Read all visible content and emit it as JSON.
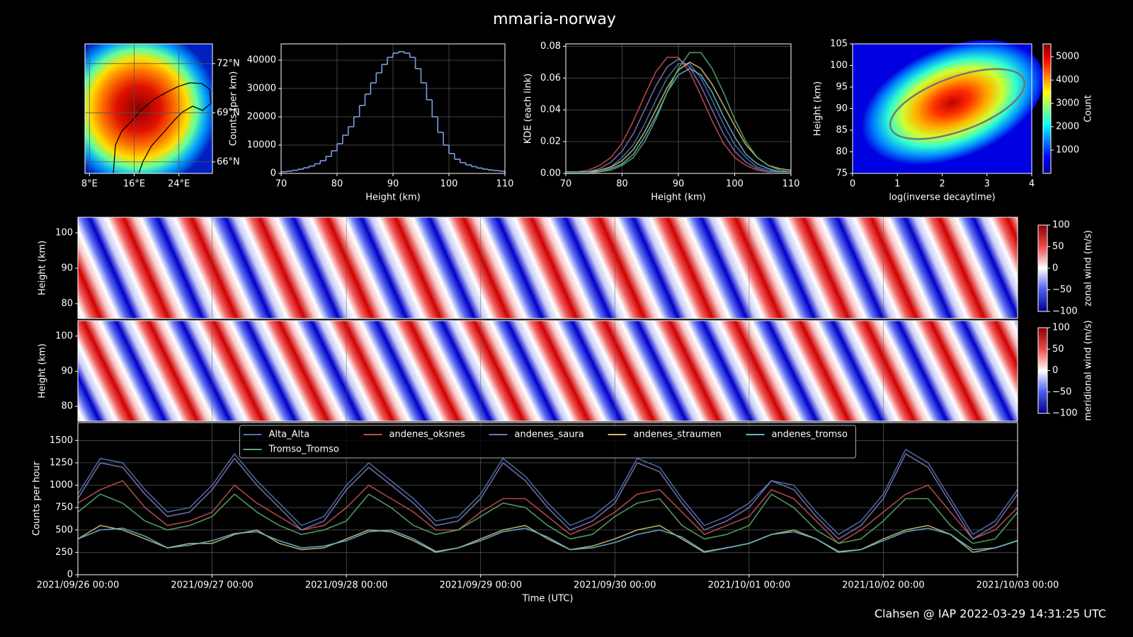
{
  "title": "mmaria-norway",
  "footer": "Clahsen @ IAP 2022-03-29 14:31:25 UTC",
  "chart_data": [
    {
      "type": "map",
      "xlim": [
        7.2,
        30
      ],
      "ylim": [
        65.3,
        73.2
      ],
      "grid": true,
      "xticks": [
        {
          "value": 8,
          "label": "8°E"
        },
        {
          "value": 16,
          "label": "16°E"
        },
        {
          "value": 24,
          "label": "24°E"
        }
      ],
      "yticks": [
        {
          "value": 72,
          "label": "72°N"
        },
        {
          "value": 69,
          "label": "69°N"
        },
        {
          "value": 66,
          "label": "66°N"
        }
      ]
    },
    {
      "type": "histogram",
      "xlabel": "Height (km)",
      "ylabel": "Counts (per km)",
      "color": "#7b9fe0",
      "grid": true,
      "xlim": [
        70,
        110
      ],
      "ylim": [
        0,
        45750
      ],
      "xticks": [
        70,
        80,
        90,
        100,
        110
      ],
      "yticks": [
        0,
        10000,
        20000,
        30000,
        40000
      ],
      "bins": [
        70,
        71,
        72,
        73,
        74,
        75,
        76,
        77,
        78,
        79,
        80,
        81,
        82,
        83,
        84,
        85,
        86,
        87,
        88,
        89,
        90,
        91,
        92,
        93,
        94,
        95,
        96,
        97,
        98,
        99,
        100,
        101,
        102,
        103,
        104,
        105,
        106,
        107,
        108,
        109,
        110
      ],
      "counts": [
        600,
        800,
        1100,
        1500,
        2000,
        2600,
        3400,
        4500,
        6000,
        8000,
        10500,
        13500,
        16500,
        20000,
        24000,
        28000,
        32000,
        35500,
        38500,
        41000,
        42500,
        43000,
        42500,
        41000,
        37000,
        32000,
        26000,
        20000,
        14500,
        10000,
        7000,
        5000,
        3800,
        3000,
        2400,
        1900,
        1500,
        1200,
        1000,
        800
      ]
    },
    {
      "type": "line",
      "xlabel": "Height (km)",
      "ylabel": "KDE (each link)",
      "grid": true,
      "xlim": [
        70,
        110
      ],
      "ylim": [
        0,
        0.0815
      ],
      "xticks": [
        70,
        80,
        90,
        100,
        110
      ],
      "yticks": [
        {
          "value": 0,
          "label": "0.00"
        },
        {
          "value": 0.02,
          "label": "0.02"
        },
        {
          "value": 0.04,
          "label": "0.04"
        },
        {
          "value": 0.06,
          "label": "0.06"
        },
        {
          "value": 0.08,
          "label": "0.08"
        }
      ],
      "x": [
        70,
        72,
        74,
        76,
        78,
        80,
        82,
        84,
        86,
        88,
        90,
        92,
        94,
        96,
        98,
        100,
        102,
        104,
        106,
        108,
        110
      ],
      "series": [
        {
          "name": "Alta_Alta",
          "color": "#4c72b0",
          "values": [
            0.001,
            0.001,
            0.001,
            0.002,
            0.004,
            0.01,
            0.018,
            0.031,
            0.046,
            0.06,
            0.069,
            0.069,
            0.06,
            0.046,
            0.031,
            0.018,
            0.01,
            0.004,
            0.002,
            0.001,
            0.001
          ]
        },
        {
          "name": "andenes_oksnes",
          "color": "#c44e52",
          "values": [
            0.001,
            0.001,
            0.002,
            0.005,
            0.01,
            0.019,
            0.033,
            0.049,
            0.064,
            0.073,
            0.073,
            0.064,
            0.049,
            0.033,
            0.019,
            0.01,
            0.005,
            0.002,
            0.001,
            0.001,
            0.001
          ]
        },
        {
          "name": "andenes_saura",
          "color": "#8172b2",
          "values": [
            0.001,
            0.001,
            0.001,
            0.003,
            0.007,
            0.014,
            0.025,
            0.04,
            0.055,
            0.067,
            0.072,
            0.067,
            0.055,
            0.04,
            0.025,
            0.014,
            0.007,
            0.003,
            0.001,
            0.001,
            0.001
          ]
        },
        {
          "name": "andenes_straumen",
          "color": "#ccb974",
          "values": [
            0.001,
            0.001,
            0.001,
            0.002,
            0.004,
            0.008,
            0.015,
            0.026,
            0.04,
            0.054,
            0.065,
            0.07,
            0.066,
            0.056,
            0.043,
            0.03,
            0.018,
            0.01,
            0.005,
            0.003,
            0.002
          ]
        },
        {
          "name": "andenes_tromso",
          "color": "#64b5cd",
          "values": [
            0.001,
            0.001,
            0.001,
            0.001,
            0.003,
            0.006,
            0.012,
            0.023,
            0.036,
            0.051,
            0.062,
            0.066,
            0.062,
            0.051,
            0.036,
            0.023,
            0.012,
            0.006,
            0.003,
            0.001,
            0.001
          ]
        },
        {
          "name": "Tromso_Tromso",
          "color": "#55a868",
          "values": [
            0.0,
            0.0,
            0.0,
            0.001,
            0.002,
            0.005,
            0.01,
            0.02,
            0.034,
            0.051,
            0.066,
            0.076,
            0.076,
            0.066,
            0.051,
            0.034,
            0.02,
            0.01,
            0.005,
            0.002,
            0.001
          ]
        }
      ]
    },
    {
      "type": "hist2d",
      "xlabel": "log(inverse decaytime)",
      "ylabel": "Height (km)",
      "xlim": [
        0,
        4
      ],
      "ylim": [
        75,
        105
      ],
      "xticks": [
        0,
        1,
        2,
        3,
        4
      ],
      "yticks": [
        75,
        80,
        85,
        90,
        95,
        100,
        105
      ],
      "colorbar": {
        "label": "Count",
        "cmap": "jet",
        "clim": [
          0,
          5550
        ],
        "ticks": [
          1000,
          2000,
          3000,
          4000,
          5000
        ]
      }
    },
    {
      "type": "heatmap",
      "ylabel": "Height (km)",
      "ylim": [
        75.8,
        104.4
      ],
      "yticks": [
        80,
        90,
        100
      ],
      "colorbar": {
        "label": "zonal wind (m/s)",
        "cmap": "bwr",
        "clim": [
          -100,
          100
        ],
        "ticks": [
          {
            "value": -100,
            "label": "−100"
          },
          {
            "value": -50,
            "label": "−50"
          },
          0,
          50,
          100
        ]
      }
    },
    {
      "type": "heatmap",
      "ylabel": "Height (km)",
      "ylim": [
        75.8,
        104.4
      ],
      "yticks": [
        80,
        90,
        100
      ],
      "colorbar": {
        "label": "meridional wind (m/s)",
        "cmap": "bwr",
        "clim": [
          -100,
          100
        ],
        "ticks": [
          {
            "value": -100,
            "label": "−100"
          },
          {
            "value": -50,
            "label": "−50"
          },
          0,
          50,
          100
        ]
      }
    },
    {
      "type": "timeseries",
      "xlabel": "Time (UTC)",
      "ylabel": "Counts per hour",
      "grid": true,
      "legend": "upper center",
      "xlim": [
        "2021/09/26 00:00",
        "2021/10/03 00:00"
      ],
      "ylim": [
        0,
        1700
      ],
      "xticks": [
        "2021/09/26 00:00",
        "2021/09/27 00:00",
        "2021/09/28 00:00",
        "2021/09/29 00:00",
        "2021/09/30 00:00",
        "2021/10/01 00:00",
        "2021/10/02 00:00",
        "2021/10/03 00:00"
      ],
      "yticks": [
        0,
        250,
        500,
        750,
        1000,
        1250,
        1500
      ],
      "x": [
        "2021/09/26 00:00",
        "2021/09/26 04:00",
        "2021/09/26 08:00",
        "2021/09/26 12:00",
        "2021/09/26 16:00",
        "2021/09/26 20:00",
        "2021/09/27 00:00",
        "2021/09/27 04:00",
        "2021/09/27 08:00",
        "2021/09/27 12:00",
        "2021/09/27 16:00",
        "2021/09/27 20:00",
        "2021/09/28 00:00",
        "2021/09/28 04:00",
        "2021/09/28 08:00",
        "2021/09/28 12:00",
        "2021/09/28 16:00",
        "2021/09/28 20:00",
        "2021/09/29 00:00",
        "2021/09/29 04:00",
        "2021/09/29 08:00",
        "2021/09/29 12:00",
        "2021/09/29 16:00",
        "2021/09/29 20:00",
        "2021/09/30 00:00",
        "2021/09/30 04:00",
        "2021/09/30 08:00",
        "2021/09/30 12:00",
        "2021/09/30 16:00",
        "2021/09/30 20:00",
        "2021/10/01 00:00",
        "2021/10/01 04:00",
        "2021/10/01 08:00",
        "2021/10/01 12:00",
        "2021/10/01 16:00",
        "2021/10/01 20:00",
        "2021/10/02 00:00",
        "2021/10/02 04:00",
        "2021/10/02 08:00",
        "2021/10/02 12:00",
        "2021/10/02 16:00",
        "2021/10/02 20:00",
        "2021/10/03 00:00"
      ],
      "series": [
        {
          "name": "Alta_Alta",
          "color": "#4c72b0",
          "values": [
            900,
            1300,
            1250,
            950,
            700,
            750,
            1000,
            1350,
            1050,
            800,
            550,
            650,
            1000,
            1250,
            1050,
            850,
            600,
            650,
            900,
            1300,
            1100,
            800,
            550,
            650,
            850,
            1300,
            1200,
            850,
            550,
            650,
            800,
            1050,
            1000,
            700,
            450,
            600,
            900,
            1400,
            1250,
            850,
            450,
            600,
            950
          ]
        },
        {
          "name": "andenes_oksnes",
          "color": "#c44e52",
          "values": [
            800,
            950,
            1050,
            750,
            550,
            600,
            700,
            1000,
            800,
            650,
            500,
            550,
            750,
            1000,
            850,
            700,
            500,
            500,
            700,
            850,
            850,
            650,
            450,
            550,
            700,
            900,
            950,
            700,
            450,
            550,
            650,
            950,
            850,
            600,
            350,
            500,
            700,
            900,
            1000,
            700,
            400,
            500,
            750
          ]
        },
        {
          "name": "andenes_saura",
          "color": "#8172b2",
          "values": [
            850,
            1250,
            1200,
            900,
            650,
            700,
            950,
            1300,
            1000,
            750,
            500,
            600,
            950,
            1200,
            1000,
            800,
            550,
            600,
            850,
            1250,
            1050,
            750,
            500,
            600,
            800,
            1250,
            1150,
            800,
            500,
            600,
            750,
            1050,
            950,
            650,
            400,
            550,
            850,
            1350,
            1200,
            800,
            400,
            550,
            900
          ]
        },
        {
          "name": "andenes_straumen",
          "color": "#ccb974",
          "values": [
            400,
            550,
            500,
            400,
            300,
            350,
            350,
            450,
            500,
            350,
            280,
            300,
            400,
            500,
            480,
            380,
            250,
            300,
            400,
            500,
            550,
            400,
            280,
            320,
            400,
            500,
            550,
            400,
            250,
            300,
            350,
            450,
            500,
            400,
            250,
            280,
            400,
            500,
            550,
            450,
            250,
            300,
            380
          ]
        },
        {
          "name": "andenes_tromso",
          "color": "#64b5cd",
          "values": [
            400,
            500,
            520,
            430,
            300,
            330,
            380,
            460,
            480,
            380,
            300,
            320,
            380,
            480,
            500,
            400,
            260,
            300,
            380,
            480,
            520,
            420,
            280,
            300,
            360,
            450,
            500,
            420,
            260,
            300,
            350,
            450,
            480,
            400,
            260,
            280,
            380,
            480,
            520,
            450,
            280,
            300,
            380
          ]
        },
        {
          "name": "Tromso_Tromso",
          "color": "#55a868",
          "values": [
            700,
            900,
            800,
            600,
            500,
            550,
            650,
            900,
            700,
            550,
            450,
            500,
            600,
            900,
            750,
            550,
            450,
            500,
            650,
            800,
            750,
            550,
            400,
            450,
            650,
            800,
            850,
            550,
            400,
            450,
            550,
            900,
            750,
            500,
            350,
            400,
            600,
            850,
            850,
            550,
            350,
            400,
            700
          ]
        }
      ]
    }
  ]
}
